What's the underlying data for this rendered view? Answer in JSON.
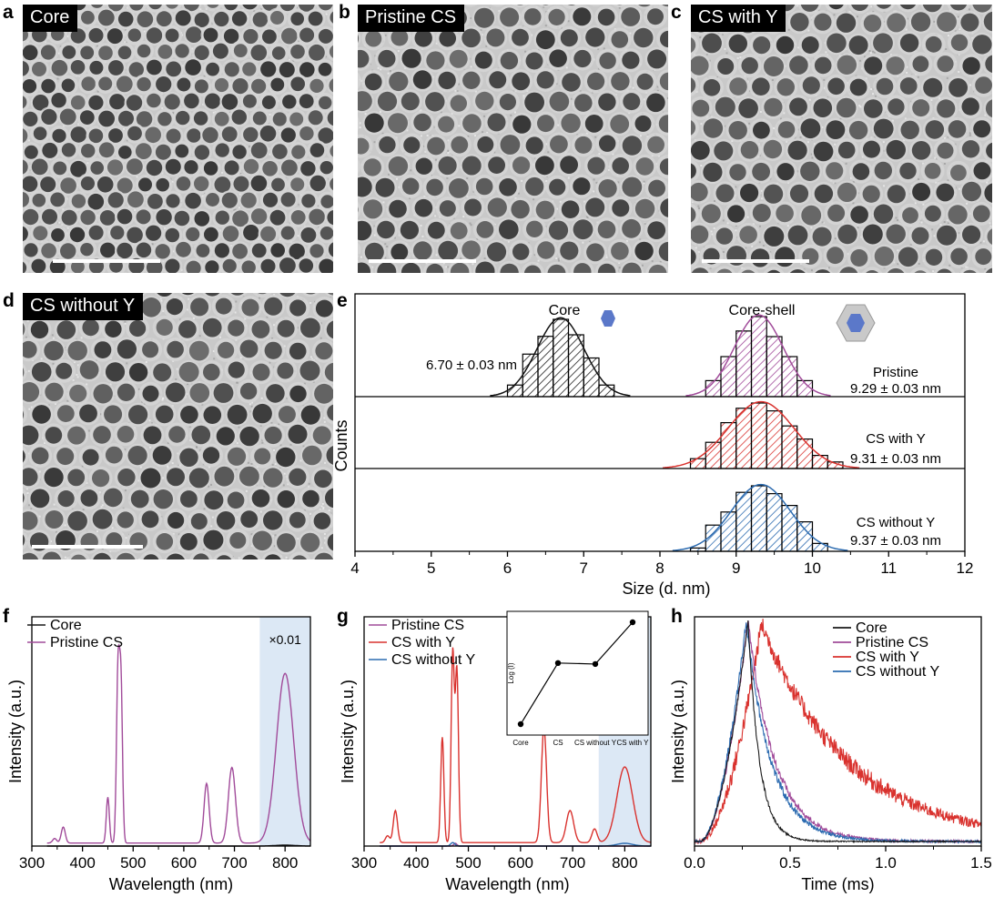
{
  "panel_letters": {
    "a": "a",
    "b": "b",
    "c": "c",
    "d": "d",
    "e": "e",
    "f": "f",
    "g": "g",
    "h": "h"
  },
  "tem_images": [
    {
      "letter": "a",
      "label": "Core"
    },
    {
      "letter": "b",
      "label": "Pristine CS"
    },
    {
      "letter": "c",
      "label": "CS with Y"
    },
    {
      "letter": "d",
      "label": "CS without Y"
    }
  ],
  "colors": {
    "core": "#1a1a1a",
    "pristine": "#a14b9a",
    "with_y": "#d9322e",
    "without_y": "#2c6bb0",
    "shade": "#dce8f5"
  },
  "chart_data": [
    {
      "id": "e",
      "type": "bar",
      "subtype": "histogram-with-gaussian-fits",
      "xlabel": "Size (d. nm)",
      "ylabel": "Counts",
      "xlim": [
        4,
        12
      ],
      "xticks": [
        "4",
        "5",
        "6",
        "7",
        "8",
        "9",
        "10",
        "11",
        "12"
      ],
      "annotations": {
        "core": "Core",
        "core_shell": "Core-shell"
      },
      "series": [
        {
          "name": "Core",
          "size": "6.70 ± 0.03 nm",
          "bin_width": 0.2,
          "bins": [
            6.1,
            6.3,
            6.5,
            6.7,
            6.9,
            7.1,
            7.3
          ],
          "values": [
            0.15,
            0.55,
            0.78,
            1.0,
            0.8,
            0.5,
            0.15
          ]
        },
        {
          "name": "Pristine",
          "size": "9.29 ± 0.03 nm",
          "bin_width": 0.2,
          "bins": [
            8.7,
            8.9,
            9.1,
            9.3,
            9.5,
            9.7,
            9.9
          ],
          "values": [
            0.2,
            0.5,
            0.82,
            1.0,
            0.75,
            0.5,
            0.2
          ]
        },
        {
          "name": "CS with Y",
          "size": "9.31 ± 0.03 nm",
          "bin_width": 0.2,
          "bins": [
            8.5,
            8.7,
            8.9,
            9.1,
            9.3,
            9.5,
            9.7,
            9.9,
            10.1,
            10.3
          ],
          "values": [
            0.15,
            0.4,
            0.7,
            0.92,
            1.0,
            0.88,
            0.65,
            0.45,
            0.2,
            0.1
          ]
        },
        {
          "name": "CS without Y",
          "size": "9.37 ± 0.03 nm",
          "bin_width": 0.2,
          "bins": [
            8.5,
            8.7,
            8.9,
            9.1,
            9.3,
            9.5,
            9.7,
            9.9,
            10.1
          ],
          "values": [
            0.05,
            0.4,
            0.6,
            0.9,
            1.0,
            0.88,
            0.7,
            0.45,
            0.12
          ]
        }
      ]
    },
    {
      "id": "f",
      "type": "line",
      "xlabel": "Wavelength (nm)",
      "ylabel": "Intensity (a.u.)",
      "xlim": [
        300,
        850
      ],
      "ylim": [
        0,
        1.0
      ],
      "xticks": [
        "300",
        "400",
        "500",
        "600",
        "700",
        "800"
      ],
      "shade_range": [
        750,
        850
      ],
      "shade_label": "×0.01",
      "legend": [
        "Core",
        "Pristine CS"
      ],
      "series": [
        {
          "name": "Core",
          "peaks": [
            [
              800,
              0.004,
              20
            ]
          ],
          "baseline": 0.0
        },
        {
          "name": "Pristine CS",
          "baseline": 0.013,
          "peaks": [
            [
              345,
              0.02,
              4
            ],
            [
              362,
              0.07,
              4
            ],
            [
              450,
              0.2,
              3
            ],
            [
              470,
              0.73,
              3
            ],
            [
              476,
              0.68,
              3
            ],
            [
              645,
              0.26,
              5
            ],
            [
              695,
              0.33,
              7
            ],
            [
              800,
              0.74,
              17
            ]
          ]
        }
      ]
    },
    {
      "id": "g",
      "type": "line",
      "xlabel": "Wavelength (nm)",
      "ylabel": "Intensity (a.u.)",
      "xlim": [
        300,
        850
      ],
      "ylim": [
        0,
        1.0
      ],
      "xticks": [
        "300",
        "400",
        "500",
        "600",
        "700",
        "800"
      ],
      "shade_range": [
        750,
        850
      ],
      "shade_label": "×0.01",
      "legend": [
        "Pristine CS",
        "CS with Y",
        "CS without Y"
      ],
      "series": [
        {
          "name": "Pristine CS",
          "baseline": 0.0,
          "peaks": [
            [
              475,
              0.012,
              3
            ]
          ]
        },
        {
          "name": "CS with Y",
          "baseline": 0.015,
          "peaks": [
            [
              345,
              0.03,
              4
            ],
            [
              360,
              0.14,
              4
            ],
            [
              450,
              0.46,
              3
            ],
            [
              470,
              0.83,
              3
            ],
            [
              478,
              0.75,
              3
            ],
            [
              645,
              0.5,
              5
            ],
            [
              695,
              0.14,
              7
            ],
            [
              742,
              0.06,
              5
            ],
            [
              800,
              0.33,
              15
            ]
          ]
        },
        {
          "name": "CS without Y",
          "baseline": 0.0,
          "peaks": [
            [
              470,
              0.015,
              4
            ],
            [
              800,
              0.012,
              15
            ]
          ]
        }
      ],
      "inset": {
        "type": "line",
        "ylabel": "Log (I)",
        "categories": [
          "Core",
          "CS",
          "CS without Y",
          "CS with Y"
        ],
        "values": [
          0.0,
          0.6,
          0.59,
          1.0
        ]
      }
    },
    {
      "id": "h",
      "type": "line",
      "xlabel": "Time (ms)",
      "ylabel": "Intensity (a.u.)",
      "xlim": [
        0,
        1.5
      ],
      "ylim": [
        0,
        1.0
      ],
      "xticks": [
        "0.0",
        "0.5",
        "1.0",
        "1.5"
      ],
      "legend": [
        "Core",
        "Pristine CS",
        "CS with Y",
        "CS without Y"
      ],
      "series": [
        {
          "name": "Core",
          "rise_start": 0.03,
          "peak_time": 0.28,
          "peak": 0.98,
          "decay_tau": 0.06,
          "noise": 0.01
        },
        {
          "name": "Pristine CS",
          "rise_start": 0.03,
          "peak_time": 0.28,
          "peak": 0.98,
          "decay_tau": 0.14,
          "noise": 0.02
        },
        {
          "name": "CS with Y",
          "rise_start": 0.03,
          "peak_time": 0.35,
          "peak": 0.97,
          "decay_tau": 0.45,
          "noise": 0.04
        },
        {
          "name": "CS without Y",
          "rise_start": 0.03,
          "peak_time": 0.27,
          "peak": 0.98,
          "decay_tau": 0.13,
          "noise": 0.02
        }
      ]
    }
  ]
}
